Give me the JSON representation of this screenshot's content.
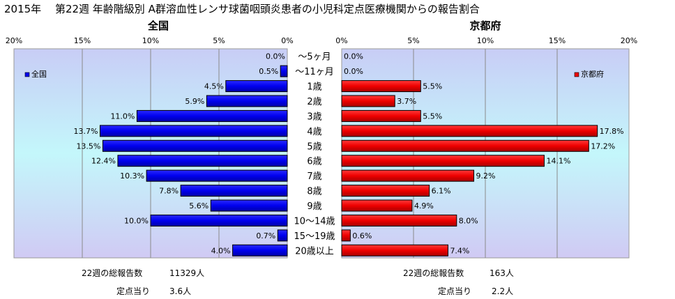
{
  "title": "2015年　 第22週 年齢階級別 A群溶血性レンサ球菌咽頭炎患者の小児科定点医療機関からの報告割合",
  "panels": {
    "left": {
      "title": "全国",
      "legend": "全国",
      "color": "#0000ee",
      "stats": {
        "total_label": "22週の総報告数",
        "total_value": "11329人",
        "per_label": "定点当り",
        "per_value": "3.6人"
      }
    },
    "right": {
      "title": "京都府",
      "legend": "京都府",
      "color": "#ee0000",
      "stats": {
        "total_label": "22週の総報告数",
        "total_value": "163人",
        "per_label": "定点当り",
        "per_value": "2.2人"
      }
    }
  },
  "chart_data": {
    "type": "bar",
    "orientation": "horizontal-butterfly",
    "categories": [
      "～5ヶ月",
      "～11ヶ月",
      "1歳",
      "2歳",
      "3歳",
      "4歳",
      "5歳",
      "6歳",
      "7歳",
      "8歳",
      "9歳",
      "10～14歳",
      "15～19歳",
      "20歳以上"
    ],
    "xlim": [
      0,
      20
    ],
    "ticks": [
      "0%",
      "5%",
      "10%",
      "15%",
      "20%"
    ],
    "series": [
      {
        "name": "全国",
        "values": [
          0.0,
          0.5,
          4.5,
          5.9,
          11.0,
          13.7,
          13.5,
          12.4,
          10.3,
          7.8,
          5.6,
          10.0,
          0.7,
          4.0
        ],
        "labels": [
          "0.0%",
          "0.5%",
          "4.5%",
          "5.9%",
          "11.0%",
          "13.7%",
          "13.5%",
          "12.4%",
          "10.3%",
          "7.8%",
          "5.6%",
          "10.0%",
          "0.7%",
          "4.0%"
        ]
      },
      {
        "name": "京都府",
        "values": [
          0.0,
          0.0,
          5.5,
          3.7,
          5.5,
          17.8,
          17.2,
          14.1,
          9.2,
          6.1,
          4.9,
          8.0,
          0.6,
          7.4
        ],
        "labels": [
          "0.0%",
          "0.0%",
          "5.5%",
          "3.7%",
          "5.5%",
          "17.8%",
          "17.2%",
          "14.1%",
          "9.2%",
          "6.1%",
          "4.9%",
          "8.0%",
          "0.6%",
          "7.4%"
        ]
      }
    ],
    "grid": true
  }
}
